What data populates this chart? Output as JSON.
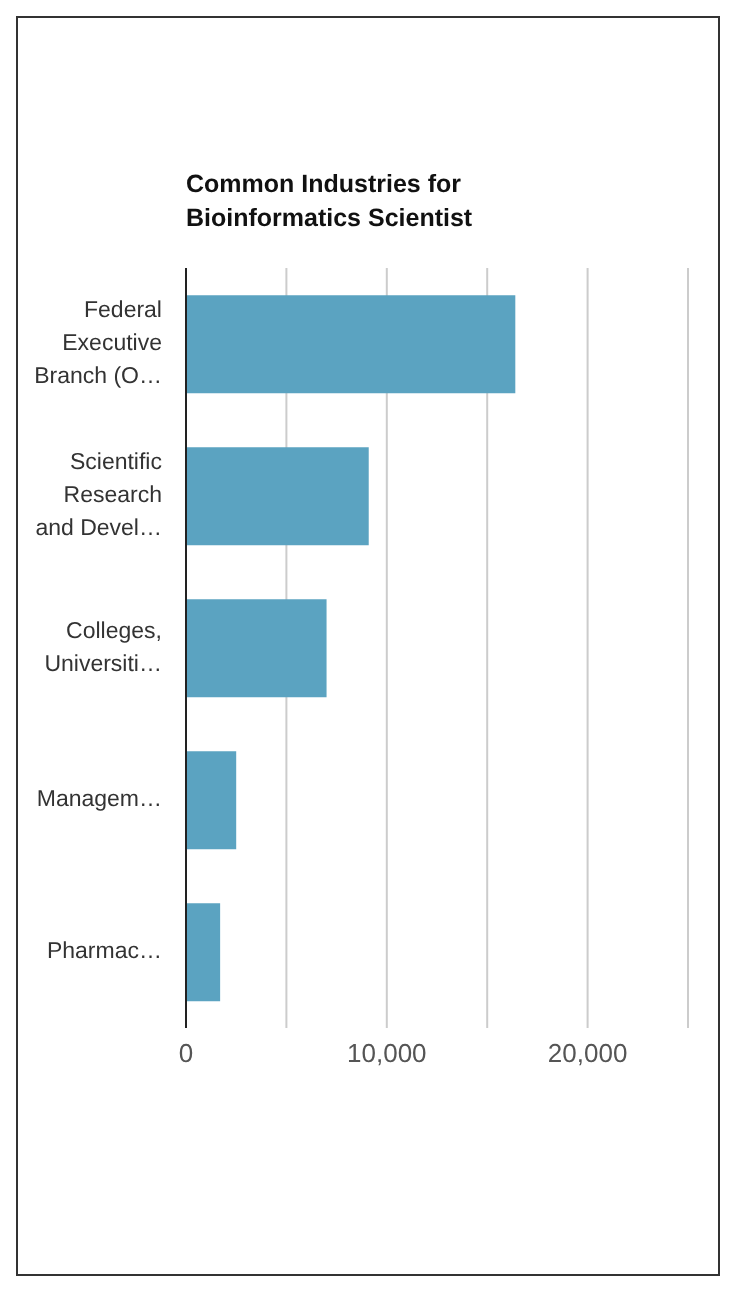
{
  "chart_data": {
    "type": "bar",
    "orientation": "horizontal",
    "title": "Common Industries for Bioinformatics Scientist",
    "categories": [
      "Federal Executive Branch (O…",
      "Scientific Research and Devel…",
      "Colleges, Universiti…",
      "Managem…",
      "Pharmac…"
    ],
    "values": [
      16400,
      9100,
      7000,
      2500,
      1700
    ],
    "color": "#5ba3c1",
    "xlim": [
      0,
      25000
    ],
    "xticks": [
      0,
      {
        "value": 5000,
        "label": null
      },
      {
        "value": 10000,
        "label": "10,000"
      },
      {
        "value": 15000,
        "label": null
      },
      {
        "value": 20000,
        "label": "20,000"
      }
    ],
    "grid": "x"
  }
}
